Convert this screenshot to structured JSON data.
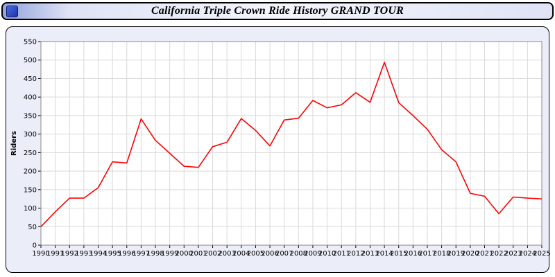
{
  "title": "California Triple Crown Ride History GRAND TOUR",
  "window": {
    "icon": "blue-square-app-icon"
  },
  "colors": {
    "panel_background": "#ebedf8",
    "plot_background": "#ffffff",
    "grid": "#d9d9d9",
    "plot_border": "#888888",
    "axis_text": "#000000",
    "line": "#ff0000"
  },
  "chart_data": {
    "type": "line",
    "title": "California Triple Crown Ride History GRAND TOUR",
    "xlabel": "",
    "ylabel": "Riders",
    "ylim": [
      0,
      550
    ],
    "ytick_step": 50,
    "grid": true,
    "legend": "none",
    "x": [
      1990,
      1991,
      1992,
      1993,
      1994,
      1995,
      1996,
      1997,
      1998,
      1999,
      2000,
      2001,
      2002,
      2003,
      2004,
      2005,
      2006,
      2007,
      2008,
      2009,
      2010,
      2011,
      2012,
      2013,
      2014,
      2015,
      2016,
      2017,
      2018,
      2019,
      2020,
      2021,
      2022,
      2023,
      2024,
      2025
    ],
    "series": [
      {
        "name": "Riders",
        "color": "#ff0000",
        "values": [
          50,
          90,
          127,
          127,
          155,
          225,
          222,
          341,
          283,
          248,
          213,
          210,
          266,
          278,
          342,
          310,
          268,
          338,
          343,
          391,
          371,
          379,
          412,
          386,
          494,
          385,
          350,
          313,
          258,
          225,
          140,
          132,
          85,
          130,
          127,
          125
        ]
      }
    ]
  }
}
